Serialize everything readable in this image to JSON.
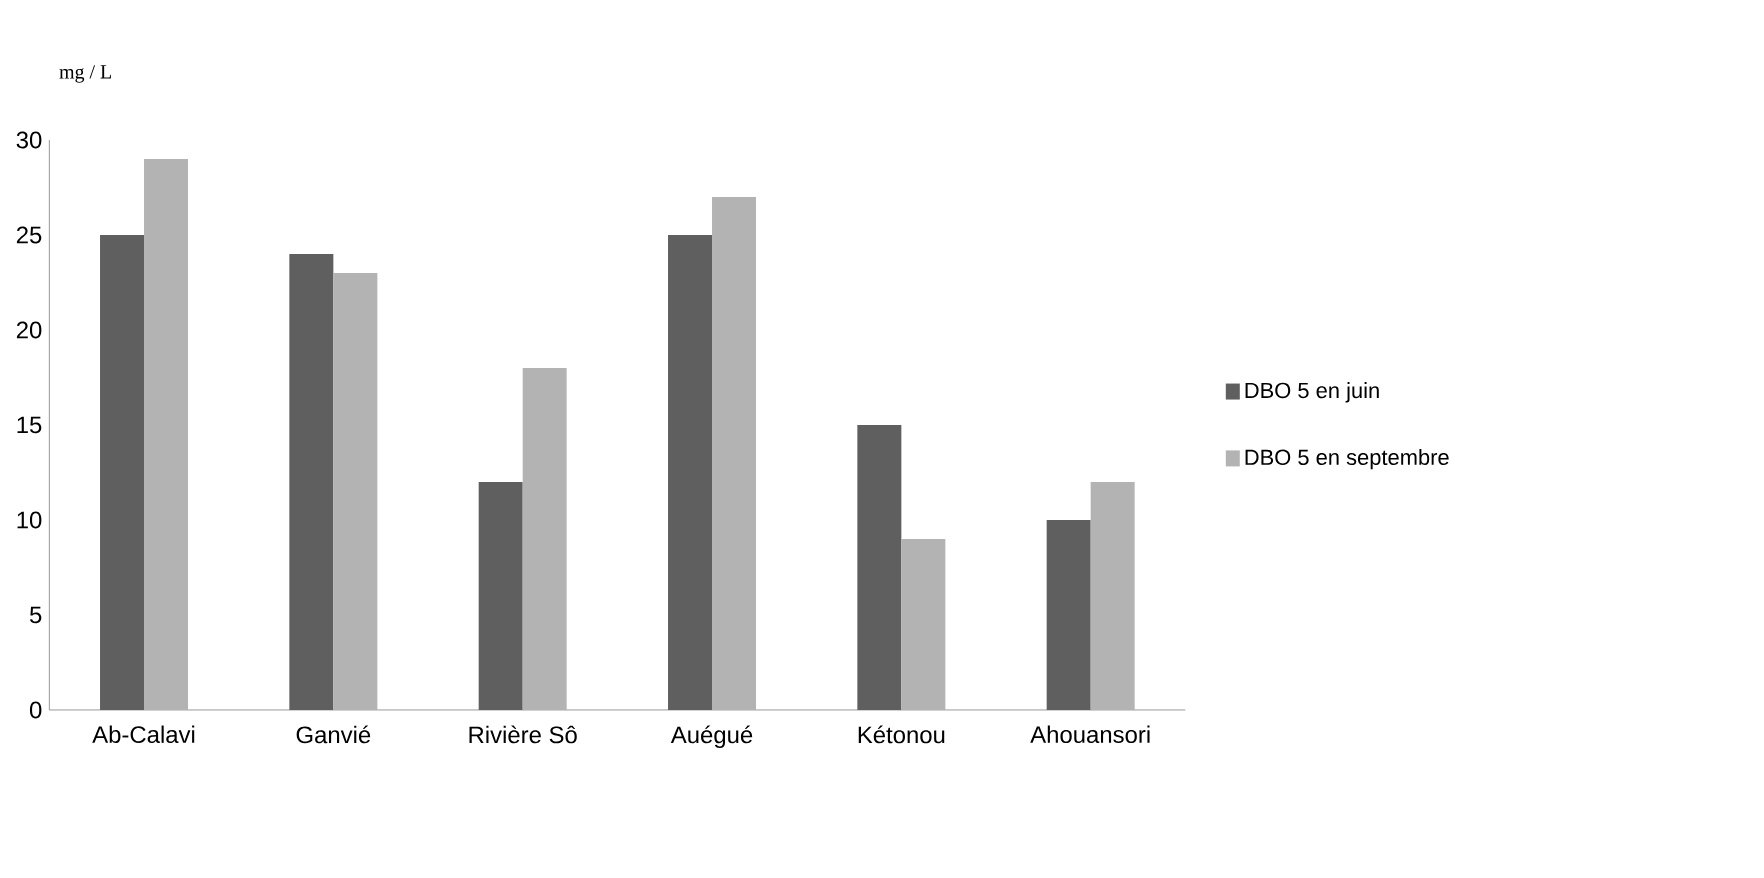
{
  "chart_data": {
    "type": "bar",
    "ylabel": "mg / L",
    "categories": [
      "Ab-Calavi",
      "Ganvié",
      "Rivière Sô",
      "Auégué",
      "Kétonou",
      "Ahouansori"
    ],
    "series": [
      {
        "name": "DBO 5 en juin",
        "color": "#5f5f5f",
        "values": [
          25,
          24,
          12,
          25,
          15,
          10
        ]
      },
      {
        "name": "DBO 5 en septembre",
        "color": "#b3b3b3",
        "values": [
          29,
          23,
          18,
          27,
          9,
          12
        ]
      }
    ],
    "ylim": [
      0,
      30
    ],
    "yticks": [
      0,
      5,
      10,
      15,
      20,
      25,
      30
    ],
    "legend": "right"
  }
}
